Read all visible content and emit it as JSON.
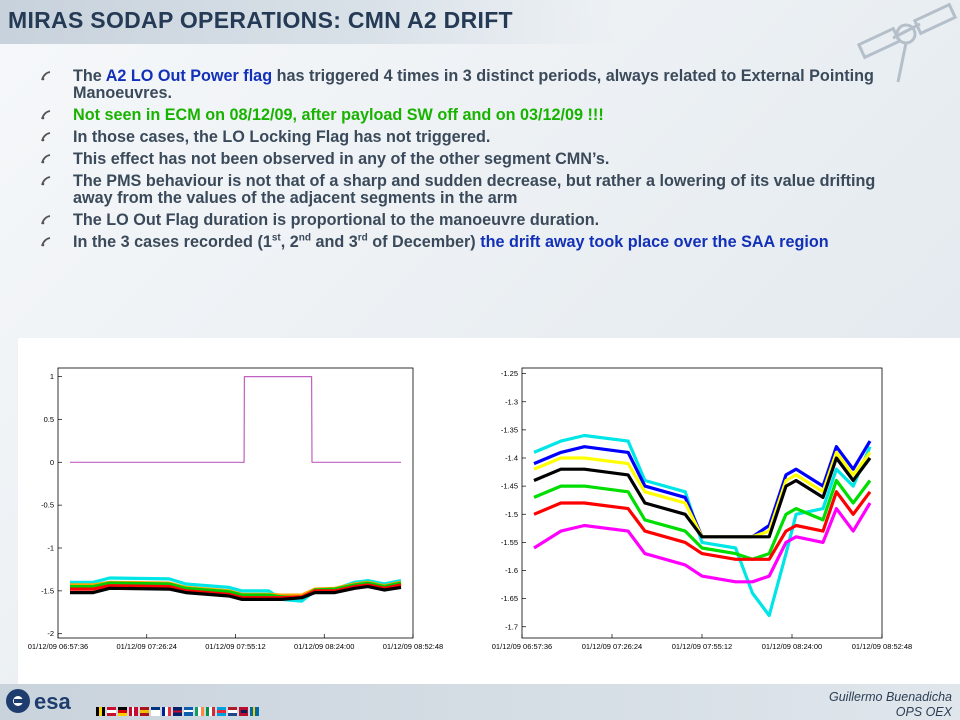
{
  "title": "MIRAS SODAP OPERATIONS: CMN A2 DRIFT",
  "bullets": [
    {
      "parts": [
        {
          "text": "The ",
          "style": "normal"
        },
        {
          "text": "A2 LO Out Power flag",
          "style": "blue"
        },
        {
          "text": " has triggered 4 times in 3 distinct periods, always related to External Pointing Manoeuvres.",
          "style": "normal"
        }
      ]
    },
    {
      "parts": [
        {
          "text": "Not seen in ECM on 08/12/09, after payload SW off and on  03/12/09 !!!",
          "style": "green"
        }
      ]
    },
    {
      "parts": [
        {
          "text": "In those cases, the LO Locking Flag has not triggered.",
          "style": "normal"
        }
      ]
    },
    {
      "parts": [
        {
          "text": "This effect has not been observed in any of the other segment CMN’s.",
          "style": "normal"
        }
      ]
    },
    {
      "parts": [
        {
          "text": "The PMS behaviour is not that of a sharp and sudden decrease, but rather a lowering of its value drifting away from the values of the adjacent segments in the arm",
          "style": "normal"
        }
      ]
    },
    {
      "parts": [
        {
          "text": "The LO Out Flag duration is proportional to the manoeuvre duration.",
          "style": "normal"
        }
      ]
    },
    {
      "parts": [
        {
          "text": "In the 3 cases recorded (1",
          "style": "normal"
        },
        {
          "text": "st",
          "style": "sup"
        },
        {
          "text": ", 2",
          "style": "normal"
        },
        {
          "text": "nd",
          "style": "sup"
        },
        {
          "text": " and 3",
          "style": "normal"
        },
        {
          "text": "rd",
          "style": "sup"
        },
        {
          "text": " of December) ",
          "style": "normal"
        },
        {
          "text": "the drift away took place over the SAA region",
          "style": "blue"
        }
      ]
    }
  ],
  "footer": {
    "logo_text": "esa",
    "author": "Guillermo Buenadicha",
    "unit": "OPS OEX"
  },
  "colors": {
    "title": "#243a55",
    "body_text": "#3b4a5a",
    "blue_highlight": "#1230b8",
    "green_highlight": "#18b300",
    "flag_line": "#c060c0"
  },
  "chart_data": [
    {
      "type": "line",
      "xlabel": "",
      "ylabel": "",
      "x_ticks": [
        "01/12/09 06:57:36",
        "01/12/09 07:26:24",
        "01/12/09 07:55:12",
        "01/12/09 08:24:00",
        "01/12/09 08:52:48"
      ],
      "y_ticks": [
        "1",
        "0.5",
        "0",
        "-0.5",
        "-1",
        "-1.5",
        "-2"
      ],
      "ylim": [
        -2.05,
        1.1
      ],
      "grid": false,
      "series": [
        {
          "color": "#c060c0",
          "x": [
            0,
            0.526,
            0.527,
            0.73,
            0.731,
            1.0
          ],
          "values": [
            0,
            0,
            1,
            1,
            0,
            0
          ]
        },
        {
          "color": "#00e5e5",
          "x": [
            0,
            0.07,
            0.12,
            0.3,
            0.35,
            0.48,
            0.52,
            0.6,
            0.64,
            0.7,
            0.74,
            0.8,
            0.86,
            0.9,
            0.95,
            1.0
          ],
          "values": [
            -1.4,
            -1.4,
            -1.35,
            -1.36,
            -1.42,
            -1.46,
            -1.5,
            -1.5,
            -1.6,
            -1.62,
            -1.5,
            -1.48,
            -1.4,
            -1.38,
            -1.42,
            -1.38
          ]
        },
        {
          "color": "#ffa500",
          "x": [
            0,
            0.07,
            0.12,
            0.3,
            0.35,
            0.48,
            0.52,
            0.6,
            0.64,
            0.7,
            0.74,
            0.8,
            0.86,
            0.9,
            0.95,
            1.0
          ],
          "values": [
            -1.43,
            -1.43,
            -1.4,
            -1.41,
            -1.46,
            -1.5,
            -1.54,
            -1.54,
            -1.55,
            -1.55,
            -1.48,
            -1.47,
            -1.42,
            -1.4,
            -1.44,
            -1.4
          ]
        },
        {
          "color": "#00cc00",
          "x": [
            0,
            0.07,
            0.12,
            0.3,
            0.35,
            0.48,
            0.52,
            0.6,
            0.64,
            0.7,
            0.74,
            0.8,
            0.86,
            0.9,
            0.95,
            1.0
          ],
          "values": [
            -1.45,
            -1.45,
            -1.41,
            -1.42,
            -1.47,
            -1.51,
            -1.55,
            -1.55,
            -1.57,
            -1.58,
            -1.49,
            -1.48,
            -1.43,
            -1.41,
            -1.45,
            -1.41
          ]
        },
        {
          "color": "#ff0000",
          "x": [
            0,
            0.07,
            0.12,
            0.3,
            0.35,
            0.48,
            0.52,
            0.6,
            0.64,
            0.7,
            0.74,
            0.8,
            0.86,
            0.9,
            0.95,
            1.0
          ],
          "values": [
            -1.48,
            -1.48,
            -1.44,
            -1.45,
            -1.5,
            -1.54,
            -1.58,
            -1.58,
            -1.58,
            -1.57,
            -1.5,
            -1.5,
            -1.45,
            -1.43,
            -1.47,
            -1.43
          ]
        },
        {
          "color": "#000000",
          "x": [
            0,
            0.07,
            0.12,
            0.3,
            0.35,
            0.48,
            0.52,
            0.6,
            0.64,
            0.7,
            0.74,
            0.8,
            0.86,
            0.9,
            0.95,
            1.0
          ],
          "values": [
            -1.52,
            -1.52,
            -1.47,
            -1.48,
            -1.52,
            -1.56,
            -1.6,
            -1.6,
            -1.6,
            -1.58,
            -1.52,
            -1.52,
            -1.47,
            -1.45,
            -1.49,
            -1.46
          ]
        }
      ]
    },
    {
      "type": "line",
      "xlabel": "",
      "ylabel": "",
      "x_ticks": [
        "01/12/09 06:57:36",
        "01/12/09 07:26:24",
        "01/12/09 07:55:12",
        "01/12/09 08:24:00",
        "01/12/09 08:52:48"
      ],
      "y_ticks": [
        "-1.25",
        "-1.3",
        "-1.35",
        "-1.4",
        "-1.45",
        "-1.5",
        "-1.55",
        "-1.6",
        "-1.65",
        "-1.7"
      ],
      "ylim": [
        -1.72,
        -1.24
      ],
      "grid": false,
      "series": [
        {
          "color": "#00e5e5",
          "x": [
            0,
            0.08,
            0.15,
            0.28,
            0.33,
            0.45,
            0.5,
            0.6,
            0.65,
            0.7,
            0.75,
            0.78,
            0.86,
            0.9,
            0.95,
            1.0
          ],
          "values": [
            -1.39,
            -1.37,
            -1.36,
            -1.37,
            -1.44,
            -1.46,
            -1.55,
            -1.56,
            -1.64,
            -1.68,
            -1.57,
            -1.5,
            -1.49,
            -1.42,
            -1.45,
            -1.38
          ]
        },
        {
          "color": "#0000ff",
          "x": [
            0,
            0.08,
            0.15,
            0.28,
            0.33,
            0.45,
            0.5,
            0.6,
            0.65,
            0.7,
            0.75,
            0.78,
            0.86,
            0.9,
            0.95,
            1.0
          ],
          "values": [
            -1.41,
            -1.39,
            -1.38,
            -1.39,
            -1.45,
            -1.47,
            -1.54,
            -1.54,
            -1.54,
            -1.52,
            -1.43,
            -1.42,
            -1.45,
            -1.38,
            -1.42,
            -1.37
          ]
        },
        {
          "color": "#ffff00",
          "x": [
            0,
            0.08,
            0.15,
            0.28,
            0.33,
            0.45,
            0.5,
            0.6,
            0.65,
            0.7,
            0.75,
            0.78,
            0.86,
            0.9,
            0.95,
            1.0
          ],
          "values": [
            -1.42,
            -1.4,
            -1.4,
            -1.41,
            -1.46,
            -1.48,
            -1.54,
            -1.54,
            -1.54,
            -1.53,
            -1.44,
            -1.43,
            -1.46,
            -1.39,
            -1.43,
            -1.39
          ]
        },
        {
          "color": "#000000",
          "x": [
            0,
            0.08,
            0.15,
            0.28,
            0.33,
            0.45,
            0.5,
            0.6,
            0.65,
            0.7,
            0.75,
            0.78,
            0.86,
            0.9,
            0.95,
            1.0
          ],
          "values": [
            -1.44,
            -1.42,
            -1.42,
            -1.43,
            -1.48,
            -1.5,
            -1.54,
            -1.54,
            -1.54,
            -1.54,
            -1.45,
            -1.44,
            -1.47,
            -1.4,
            -1.44,
            -1.4
          ]
        },
        {
          "color": "#00dd00",
          "x": [
            0,
            0.08,
            0.15,
            0.28,
            0.33,
            0.45,
            0.5,
            0.6,
            0.65,
            0.7,
            0.75,
            0.78,
            0.86,
            0.9,
            0.95,
            1.0
          ],
          "values": [
            -1.47,
            -1.45,
            -1.45,
            -1.46,
            -1.51,
            -1.53,
            -1.56,
            -1.57,
            -1.58,
            -1.57,
            -1.5,
            -1.49,
            -1.51,
            -1.44,
            -1.48,
            -1.44
          ]
        },
        {
          "color": "#ff0000",
          "x": [
            0,
            0.08,
            0.15,
            0.28,
            0.33,
            0.45,
            0.5,
            0.6,
            0.65,
            0.7,
            0.75,
            0.78,
            0.86,
            0.9,
            0.95,
            1.0
          ],
          "values": [
            -1.5,
            -1.48,
            -1.48,
            -1.49,
            -1.53,
            -1.55,
            -1.57,
            -1.58,
            -1.58,
            -1.58,
            -1.53,
            -1.52,
            -1.53,
            -1.46,
            -1.5,
            -1.46
          ]
        },
        {
          "color": "#ff00ff",
          "x": [
            0,
            0.08,
            0.15,
            0.28,
            0.33,
            0.45,
            0.5,
            0.6,
            0.65,
            0.7,
            0.75,
            0.78,
            0.86,
            0.9,
            0.95,
            1.0
          ],
          "values": [
            -1.56,
            -1.53,
            -1.52,
            -1.53,
            -1.57,
            -1.59,
            -1.61,
            -1.62,
            -1.62,
            -1.61,
            -1.55,
            -1.54,
            -1.55,
            -1.49,
            -1.53,
            -1.48
          ]
        }
      ]
    }
  ]
}
